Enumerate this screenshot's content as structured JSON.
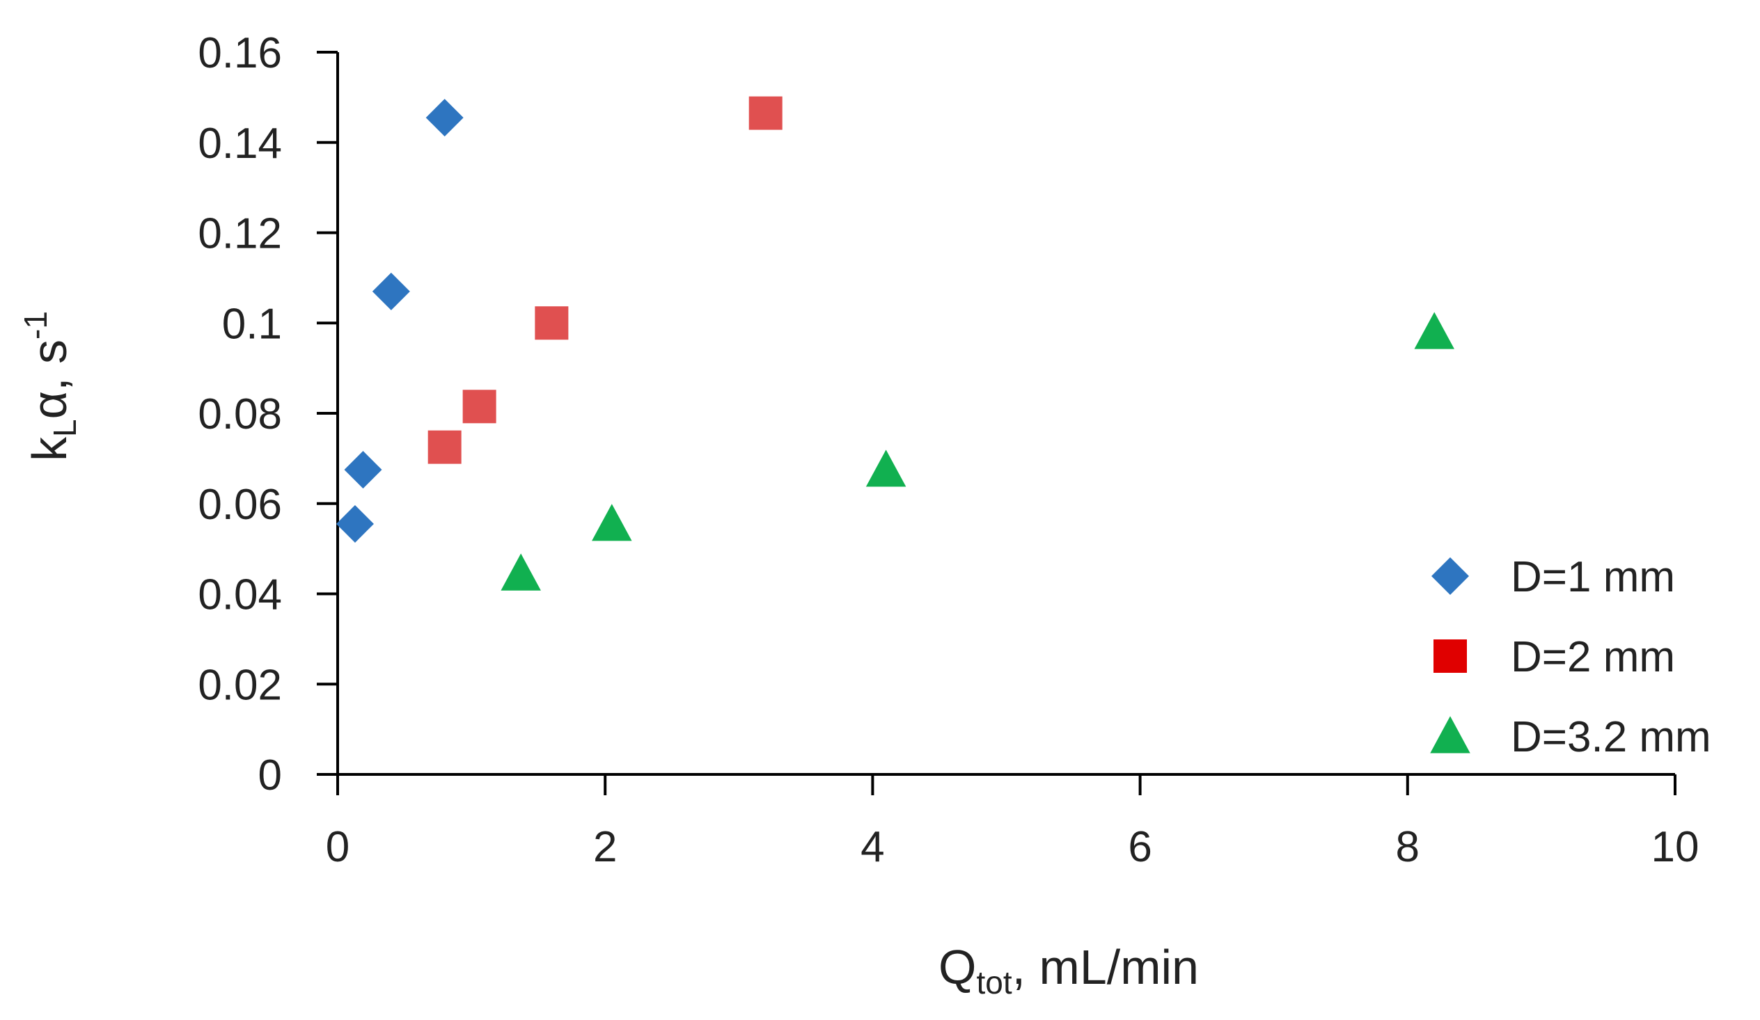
{
  "chart_data": {
    "type": "scatter",
    "title": "",
    "xlabel": {
      "main": "Q",
      "sub": "tot",
      "rest": ", mL/min"
    },
    "ylabel": {
      "main": "k",
      "sub": "L",
      "mid": "α, s",
      "sup": "-1"
    },
    "xlim": [
      0,
      10
    ],
    "ylim": [
      0,
      0.16
    ],
    "xticks": [
      0,
      2,
      4,
      6,
      8,
      10
    ],
    "xtick_labels": [
      "0",
      "2",
      "4",
      "6",
      "8",
      "10"
    ],
    "yticks": [
      0,
      0.02,
      0.04,
      0.06,
      0.08,
      0.1,
      0.12,
      0.14,
      0.16
    ],
    "ytick_labels": [
      "0",
      "0.02",
      "0.04",
      "0.06",
      "0.08",
      "0.1",
      "0.12",
      "0.14",
      "0.16"
    ],
    "grid": false,
    "legend_position": "bottom-right",
    "series": [
      {
        "name": "D=1 mm",
        "marker": "diamond",
        "color": "#2E75C0",
        "points": [
          [
            0.13,
            0.0555
          ],
          [
            0.19,
            0.0675
          ],
          [
            0.4,
            0.107
          ],
          [
            0.8,
            0.1455
          ]
        ]
      },
      {
        "name": "D=2 mm",
        "marker": "square",
        "color": "#E05050",
        "legend_color": "#E00000",
        "points": [
          [
            0.8,
            0.0725
          ],
          [
            1.06,
            0.0815
          ],
          [
            1.6,
            0.1
          ],
          [
            3.2,
            0.1465
          ]
        ]
      },
      {
        "name": "D=3.2 mm",
        "marker": "triangle",
        "color": "#11B050",
        "points": [
          [
            1.37,
            0.0445
          ],
          [
            2.05,
            0.0555
          ],
          [
            4.1,
            0.0675
          ],
          [
            8.2,
            0.098
          ]
        ]
      }
    ]
  }
}
